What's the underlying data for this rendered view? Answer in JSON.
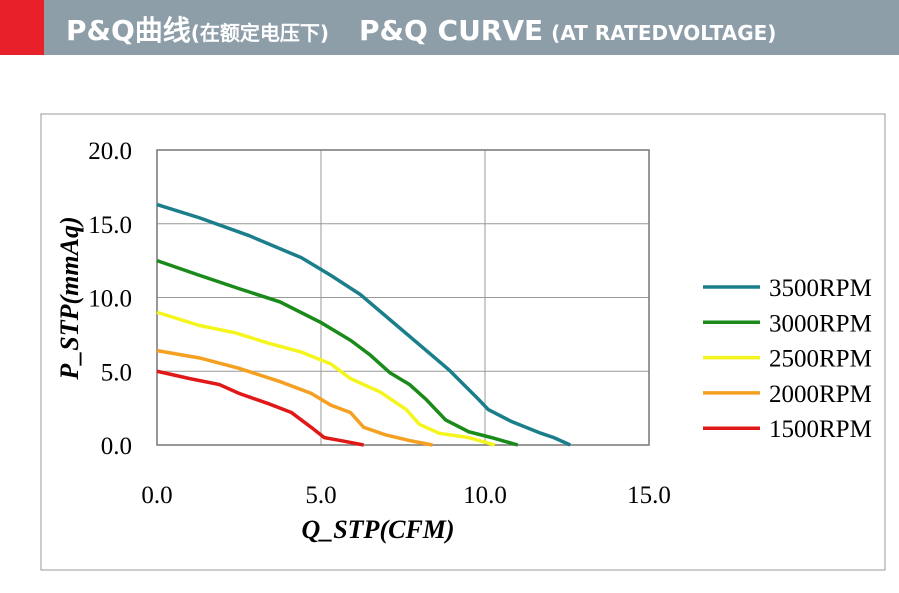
{
  "header": {
    "title_cn": "P&Q曲线",
    "subtitle_cn": "(在额定电压下)",
    "title_en": "P&Q CURVE",
    "subtitle_en": "(AT RATEDVOLTAGE)"
  },
  "chart_data": {
    "type": "line",
    "x_label": "Q_STP(CFM)",
    "y_label": "P_STP(mmAq)",
    "xlim": [
      0,
      15
    ],
    "ylim": [
      0,
      20
    ],
    "xticks": [
      {
        "value": 0,
        "label": "0.0"
      },
      {
        "value": 5,
        "label": "5.0"
      },
      {
        "value": 10,
        "label": "10.0"
      },
      {
        "value": 15,
        "label": "15.0"
      }
    ],
    "yticks": [
      {
        "value": 0,
        "label": "0.0"
      },
      {
        "value": 5,
        "label": "5.0"
      },
      {
        "value": 10,
        "label": "10.0"
      },
      {
        "value": 15,
        "label": "15.0"
      },
      {
        "value": 20,
        "label": "20.0"
      }
    ],
    "grid": true,
    "legend": "right",
    "series": [
      {
        "name": "3500RPM",
        "color": "#1a7f8a",
        "x": [
          0,
          1.3,
          2.8,
          4.4,
          5.3,
          6.2,
          7.1,
          8.0,
          8.9,
          9.8,
          10.1,
          10.8,
          11.7,
          12.1,
          12.6
        ],
        "values": [
          16.3,
          15.4,
          14.2,
          12.7,
          11.5,
          10.2,
          8.5,
          6.8,
          5.1,
          3.1,
          2.4,
          1.6,
          0.8,
          0.5,
          0
        ]
      },
      {
        "name": "3000RPM",
        "color": "#1a8a1a",
        "x": [
          0,
          1.3,
          2.5,
          3.75,
          5.0,
          5.9,
          6.5,
          7.1,
          7.7,
          8.2,
          8.8,
          9.5,
          10.2,
          11.0
        ],
        "values": [
          12.5,
          11.5,
          10.6,
          9.7,
          8.3,
          7.1,
          6.1,
          4.9,
          4.1,
          3.1,
          1.7,
          0.9,
          0.5,
          0
        ]
      },
      {
        "name": "2500RPM",
        "color": "#f5f51e",
        "x": [
          0,
          1.3,
          2.4,
          3.4,
          4.4,
          5.3,
          5.9,
          6.8,
          7.6,
          8.0,
          8.6,
          9.5,
          10.3
        ],
        "values": [
          9.0,
          8.1,
          7.6,
          6.9,
          6.3,
          5.5,
          4.5,
          3.6,
          2.4,
          1.4,
          0.8,
          0.5,
          0
        ]
      },
      {
        "name": "2000RPM",
        "color": "#f5a020",
        "x": [
          0,
          1.3,
          2.5,
          3.75,
          4.7,
          5.3,
          5.9,
          6.3,
          6.95,
          7.7,
          8.4
        ],
        "values": [
          6.4,
          5.9,
          5.2,
          4.3,
          3.5,
          2.7,
          2.2,
          1.2,
          0.7,
          0.3,
          0
        ]
      },
      {
        "name": "1500RPM",
        "color": "#e01818",
        "x": [
          0,
          1.0,
          1.9,
          2.5,
          3.4,
          4.1,
          4.7,
          5.1,
          5.6,
          6.3
        ],
        "values": [
          5.0,
          4.5,
          4.1,
          3.5,
          2.8,
          2.2,
          1.2,
          0.5,
          0.3,
          0
        ]
      }
    ]
  }
}
